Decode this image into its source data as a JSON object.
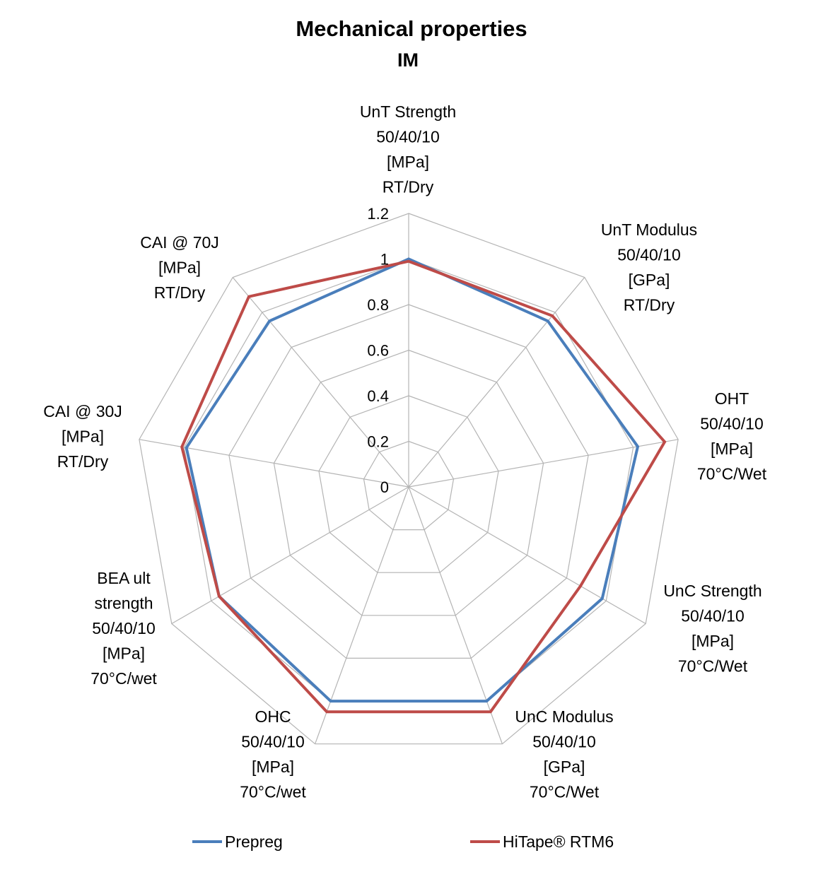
{
  "chart_data": {
    "type": "radar",
    "title": "Mechanical properties",
    "subtitle": "IM",
    "axes": [
      [
        "UnT Strength",
        "50/40/10",
        "[MPa]",
        "RT/Dry"
      ],
      [
        "UnT Modulus",
        "50/40/10",
        "[GPa]",
        "RT/Dry"
      ],
      [
        "OHT",
        "50/40/10",
        "[MPa]",
        "70°C/Wet"
      ],
      [
        "UnC Strength",
        "50/40/10",
        "[MPa]",
        "70°C/Wet"
      ],
      [
        "UnC Modulus",
        "50/40/10",
        "[GPa]",
        "70°C/Wet"
      ],
      [
        "OHC",
        "50/40/10",
        "[MPa]",
        "70°C/wet"
      ],
      [
        "BEA ult",
        "strength",
        "50/40/10",
        "[MPa]",
        "70°C/wet"
      ],
      [
        "CAI @ 30J",
        "[MPa]",
        "RT/Dry"
      ],
      [
        "CAI @ 70J",
        "[MPa]",
        "RT/Dry"
      ]
    ],
    "ticks": [
      "0",
      "0.2",
      "0.4",
      "0.6",
      "0.8",
      "1",
      "1.2"
    ],
    "rmin": 0,
    "rmax": 1.2,
    "grid": true,
    "legend_position": "bottom",
    "series": [
      {
        "name": "Prepreg",
        "color": "#4a7ebb",
        "values": [
          1.0,
          0.95,
          1.02,
          0.98,
          1.0,
          1.0,
          0.96,
          0.99,
          0.95
        ]
      },
      {
        "name": "HiTape® RTM6",
        "color": "#be4b48",
        "values": [
          0.99,
          0.98,
          1.14,
          0.87,
          1.05,
          1.05,
          0.96,
          1.01,
          1.09
        ]
      }
    ]
  },
  "colors": {
    "grid": "#b4b4b4"
  }
}
